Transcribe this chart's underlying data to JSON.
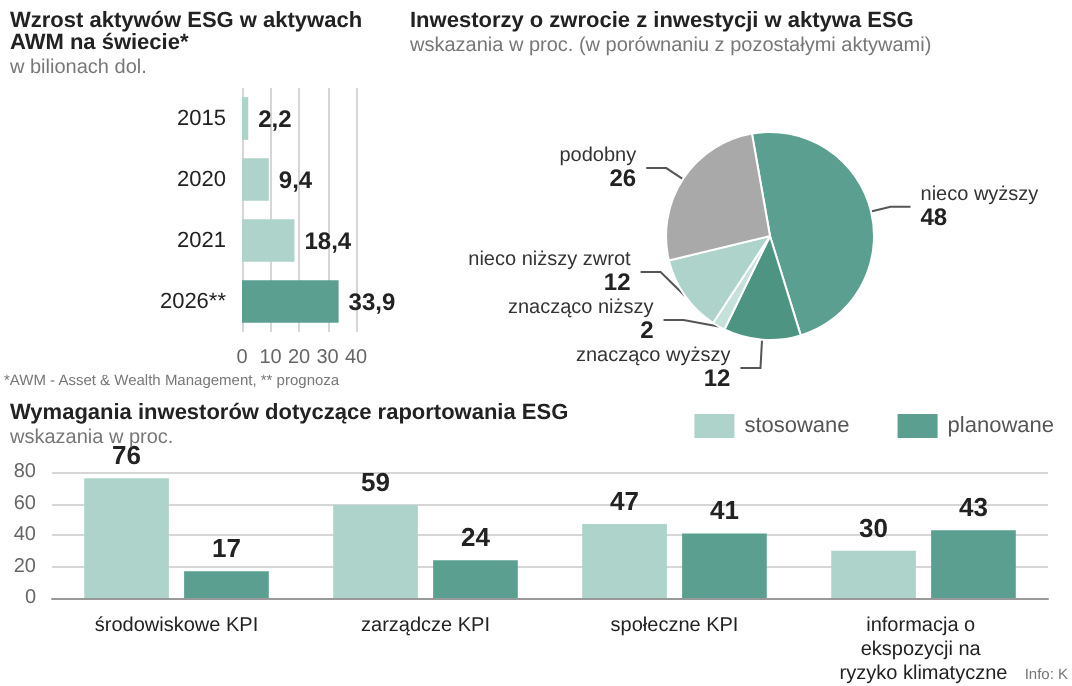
{
  "chart_data": [
    {
      "type": "bar",
      "orientation": "horizontal",
      "title": "Wzrost aktywów ESG w aktywach AWM na świecie*",
      "subtitle": "w bilionach dol.",
      "categories": [
        "2015",
        "2020",
        "2021",
        "2026**"
      ],
      "values": [
        2.2,
        9.4,
        18.4,
        33.9
      ],
      "colors": [
        "#aed3ca",
        "#aed3ca",
        "#aed3ca",
        "#5a9f8f"
      ],
      "value_labels": [
        "2,2",
        "9,4",
        "18,4",
        "33,9"
      ],
      "xlim": [
        0,
        40
      ],
      "xticks": [
        0,
        10,
        20,
        30,
        40
      ],
      "grid": "x",
      "annotations": [
        "*AWM - Asset & Wealth Management, ** prognoza"
      ]
    },
    {
      "type": "pie",
      "title": "Inwestorzy o zwrocie z inwestycji w aktywa ESG",
      "subtitle": "wskazania w proc. (w porównaniu z pozostałymi aktywami)",
      "categories": [
        "nieco wyższy",
        "znacząco wyższy",
        "znacząco niższy",
        "nieco niższy zwrot",
        "podobny"
      ],
      "values": [
        48,
        12,
        2,
        12,
        26
      ],
      "colors": [
        "#5a9f8f",
        "#4e9483",
        "#c6e0da",
        "#aed3ca",
        "#a9a9a9"
      ],
      "data_labels": true
    },
    {
      "type": "bar",
      "title": "Wymagania inwestorów dotyczące raportowania ESG",
      "subtitle": "wskazania w proc.",
      "categories": [
        "środowiskowe KPI",
        "zarządcze KPI",
        "społeczne KPI",
        "informacja o ekspozycji na ryzyko klimatyczne"
      ],
      "series": [
        {
          "name": "stosowane",
          "color": "#aed3ca",
          "values": [
            76,
            59,
            47,
            30
          ]
        },
        {
          "name": "planowane",
          "color": "#5a9f8f",
          "values": [
            17,
            24,
            41,
            43
          ]
        }
      ],
      "ylim": [
        0,
        80
      ],
      "yticks": [
        0,
        20,
        40,
        60,
        80
      ],
      "grid": "y",
      "legend": "top right",
      "data_labels": true,
      "annotations": [
        "Info: K"
      ]
    }
  ]
}
